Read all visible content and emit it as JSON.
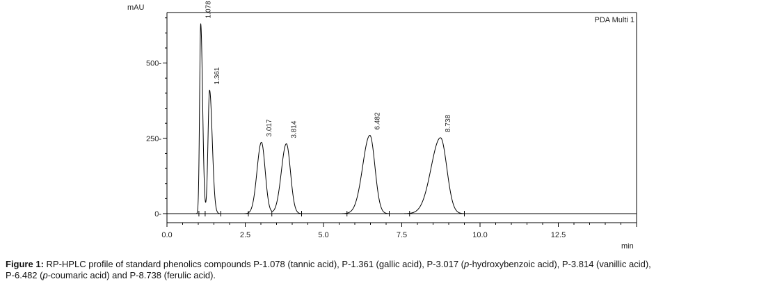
{
  "chart_data": {
    "type": "line",
    "y_unit": "mAU",
    "x_unit": "min",
    "legend": "PDA Multi 1",
    "xlim": [
      0,
      15
    ],
    "ylim": [
      -25,
      650
    ],
    "x_ticks": [
      0.0,
      2.5,
      5.0,
      7.5,
      10.0,
      12.5
    ],
    "x_tick_labels": [
      "0.0",
      "2.5",
      "5.0",
      "7.5",
      "10.0",
      "12.5"
    ],
    "y_ticks": [
      0,
      250,
      500
    ],
    "y_tick_labels": [
      "0",
      "250",
      "500"
    ],
    "baseline": 0,
    "peaks": [
      {
        "label": "1.078",
        "rt": 1.078,
        "height": 630,
        "width_left": 0.035,
        "width_right": 0.06
      },
      {
        "label": "1.361",
        "rt": 1.361,
        "height": 410,
        "width_left": 0.05,
        "width_right": 0.085
      },
      {
        "label": "3.017",
        "rt": 3.017,
        "height": 237,
        "width_left": 0.14,
        "width_right": 0.12
      },
      {
        "label": "3.814",
        "rt": 3.814,
        "height": 232,
        "width_left": 0.16,
        "width_right": 0.13
      },
      {
        "label": "6.482",
        "rt": 6.482,
        "height": 260,
        "width_left": 0.23,
        "width_right": 0.16
      },
      {
        "label": "8.738",
        "rt": 8.738,
        "height": 252,
        "width_left": 0.3,
        "width_right": 0.2
      }
    ],
    "integration_marks": [
      1.02,
      1.22,
      1.72,
      2.6,
      3.35,
      4.3,
      5.75,
      7.1,
      7.75,
      9.5
    ]
  },
  "caption": {
    "prefix": "Figure 1:",
    "line1": " RP-HPLC profile of standard phenolics compounds P-1.078 (tannic acid), P-1.361 (gallic acid), P-3.017 (",
    "italic1": "p",
    "line1b": "-hydroxybenzoic acid), P-3.814 (vanillic acid),",
    "line2a": "P-6.482 (",
    "italic2": "p",
    "line2b": "-coumaric acid) and P-8.738 (ferulic acid)."
  }
}
